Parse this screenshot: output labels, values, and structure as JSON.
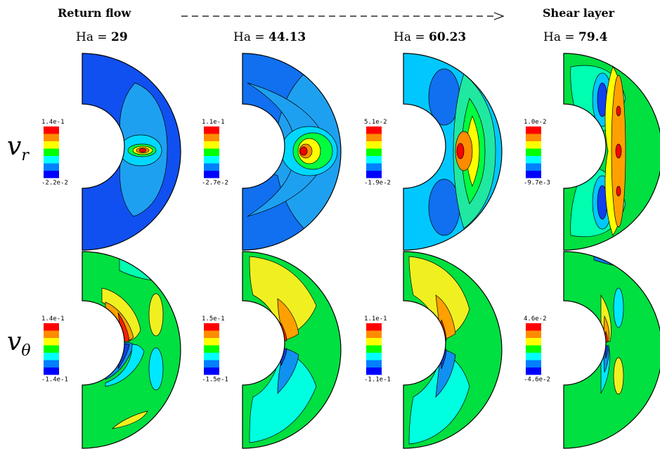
{
  "header": {
    "left_title": "Return flow",
    "right_title": "Shear layer"
  },
  "columns": [
    {
      "ha_prefix": "Ha =",
      "ha_value": "29"
    },
    {
      "ha_prefix": "Ha =",
      "ha_value": "44.13"
    },
    {
      "ha_prefix": "Ha =",
      "ha_value": "60.23"
    },
    {
      "ha_prefix": "Ha =",
      "ha_value": "79.4"
    }
  ],
  "rows": [
    {
      "symbol": "v",
      "sub": "r",
      "colorbars": [
        {
          "max": "1.4e-1",
          "min": "-2.2e-2"
        },
        {
          "max": "1.1e-1",
          "min": "-2.7e-2"
        },
        {
          "max": "5.1e-2",
          "min": "-1.9e-2"
        },
        {
          "max": "1.0e-2",
          "min": "-9.7e-3"
        }
      ]
    },
    {
      "symbol": "v",
      "sub": "θ",
      "colorbars": [
        {
          "max": "1.4e-1",
          "min": "-1.4e-1"
        },
        {
          "max": "1.5e-1",
          "min": "-1.5e-1"
        },
        {
          "max": "1.1e-1",
          "min": "-1.1e-1"
        },
        {
          "max": "4.6e-2",
          "min": "-4.6e-2"
        }
      ]
    }
  ],
  "palette": [
    "#ff0000",
    "#ff8c00",
    "#ffff00",
    "#00ff00",
    "#00ffff",
    "#0080ff",
    "#0000ff"
  ]
}
